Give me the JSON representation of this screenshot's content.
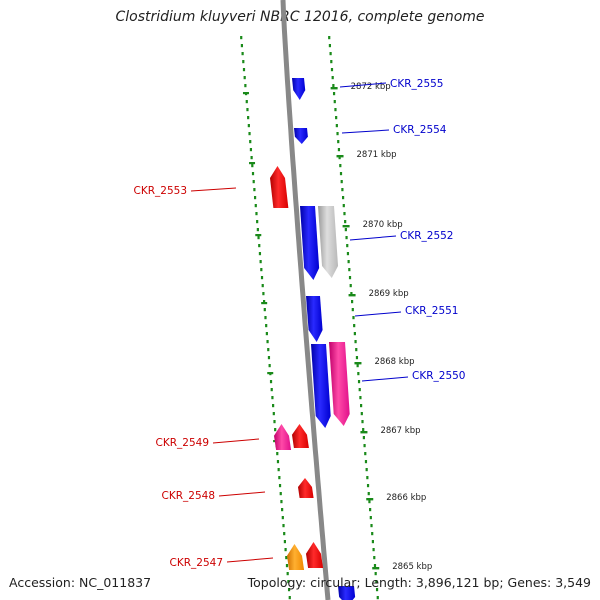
{
  "title": "Clostridium kluyveri NBRC 12016, complete genome",
  "footer": {
    "accession": "Accession: NC_011837",
    "summary": "Topology: circular; Length: 3,896,121 bp; Genes: 3,549"
  },
  "colors": {
    "forward_label": "#0000cc",
    "reverse_label": "#cc0000",
    "tick": "#1a8a1a",
    "backbone": "#888888"
  },
  "kbp_ticks": [
    "2872 kbp",
    "2871 kbp",
    "2870 kbp",
    "2869 kbp",
    "2868 kbp",
    "2867 kbp",
    "2866 kbp",
    "2865 kbp"
  ],
  "genes": [
    {
      "label": "CKR_2555",
      "strand": "forward"
    },
    {
      "label": "CKR_2554",
      "strand": "forward"
    },
    {
      "label": "CKR_2553",
      "strand": "reverse"
    },
    {
      "label": "CKR_2552",
      "strand": "forward"
    },
    {
      "label": "CKR_2551",
      "strand": "forward"
    },
    {
      "label": "CKR_2550",
      "strand": "forward"
    },
    {
      "label": "CKR_2549",
      "strand": "reverse"
    },
    {
      "label": "CKR_2548",
      "strand": "reverse"
    },
    {
      "label": "CKR_2547",
      "strand": "reverse"
    }
  ]
}
